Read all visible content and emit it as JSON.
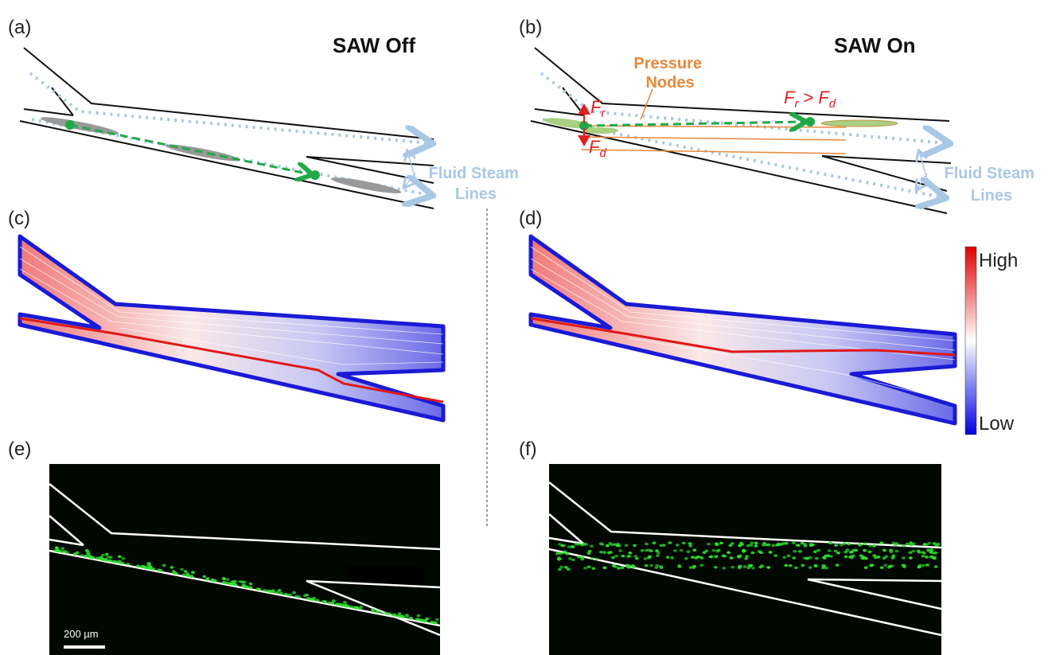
{
  "panels": [
    {
      "label": "(a)",
      "title": "SAW Off",
      "annotation": [
        "Fluid Steam",
        "Lines"
      ]
    },
    {
      "label": "(b)",
      "title": "SAW On",
      "annotation": [
        "Fluid Steam",
        "Lines"
      ],
      "pressure_nodes": [
        "Pressure",
        "Nodes"
      ],
      "force_r": [
        "F",
        "r"
      ],
      "force_d": [
        "F",
        "d"
      ],
      "force_compare": [
        "F",
        "r",
        ">",
        "F",
        "d"
      ]
    },
    {
      "label": "(c)"
    },
    {
      "label": "(d)"
    },
    {
      "label": "(e)",
      "scale_bar": "200 µm"
    },
    {
      "label": "(f)"
    }
  ],
  "colorbar": {
    "high": "High",
    "low": "Low"
  }
}
